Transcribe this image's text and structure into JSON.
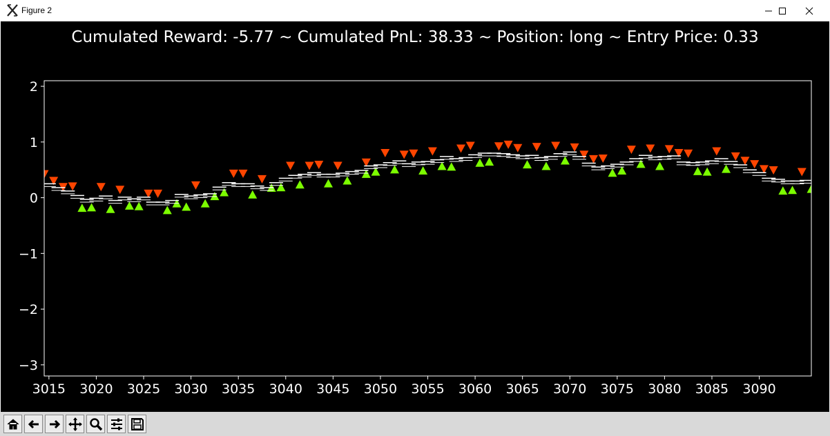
{
  "window": {
    "title": "Figure 2",
    "app_icon": "matplotlib-x-icon",
    "buttons": [
      "minimize-icon",
      "maximize-icon",
      "close-icon"
    ]
  },
  "toolbar": {
    "buttons": [
      "home-icon",
      "back-arrow-icon",
      "forward-arrow-icon",
      "pan-icon",
      "zoom-icon",
      "configure-subplots-icon",
      "save-icon"
    ]
  },
  "chart_data": {
    "type": "scatter",
    "title": "Cumulated Reward: -5.77 ~ Cumulated PnL: 38.33 ~ Position: long ~ Entry Price: 0.33",
    "xlabel": "",
    "ylabel": "",
    "xlim": [
      3014.5,
      3095.5
    ],
    "ylim": [
      -3.2,
      2.1
    ],
    "xticks": [
      3015,
      3020,
      3025,
      3030,
      3035,
      3040,
      3045,
      3050,
      3055,
      3060,
      3065,
      3070,
      3075,
      3080,
      3085,
      3090
    ],
    "yticks": [
      2,
      1,
      0,
      -1,
      -2,
      -3
    ],
    "ytick_labels": [
      "2",
      "1",
      "0",
      "−1",
      "−2",
      "−3"
    ],
    "background": "#000000",
    "axis_color": "#ffffff",
    "grid": false,
    "series": [
      {
        "marker": "triangle-down",
        "color": "#ff4500",
        "points": [
          [
            3014.5,
            0.42
          ],
          [
            3015.5,
            0.3
          ],
          [
            3016.5,
            0.19
          ],
          [
            3017.5,
            0.2
          ],
          [
            3020.5,
            0.19
          ],
          [
            3022.5,
            0.14
          ],
          [
            3025.5,
            0.07
          ],
          [
            3026.5,
            0.07
          ],
          [
            3030.5,
            0.22
          ],
          [
            3034.5,
            0.43
          ],
          [
            3035.5,
            0.43
          ],
          [
            3037.5,
            0.33
          ],
          [
            3040.5,
            0.57
          ],
          [
            3042.5,
            0.57
          ],
          [
            3043.5,
            0.59
          ],
          [
            3045.5,
            0.57
          ],
          [
            3048.5,
            0.63
          ],
          [
            3050.5,
            0.8
          ],
          [
            3052.5,
            0.77
          ],
          [
            3053.5,
            0.79
          ],
          [
            3055.5,
            0.83
          ],
          [
            3058.5,
            0.88
          ],
          [
            3059.5,
            0.93
          ],
          [
            3062.5,
            0.92
          ],
          [
            3063.5,
            0.95
          ],
          [
            3064.5,
            0.89
          ],
          [
            3066.5,
            0.91
          ],
          [
            3068.5,
            0.93
          ],
          [
            3070.5,
            0.9
          ],
          [
            3071.5,
            0.77
          ],
          [
            3072.5,
            0.69
          ],
          [
            3073.5,
            0.7
          ],
          [
            3076.5,
            0.86
          ],
          [
            3078.5,
            0.88
          ],
          [
            3080.5,
            0.87
          ],
          [
            3081.5,
            0.8
          ],
          [
            3082.5,
            0.79
          ],
          [
            3085.5,
            0.83
          ],
          [
            3087.5,
            0.74
          ],
          [
            3088.5,
            0.66
          ],
          [
            3089.5,
            0.6
          ],
          [
            3090.5,
            0.51
          ],
          [
            3091.5,
            0.49
          ],
          [
            3094.5,
            0.46
          ]
        ]
      },
      {
        "marker": "triangle-up",
        "color": "#7cfc00",
        "points": [
          [
            3018.5,
            -0.18
          ],
          [
            3019.5,
            -0.17
          ],
          [
            3021.5,
            -0.2
          ],
          [
            3023.5,
            -0.14
          ],
          [
            3024.5,
            -0.15
          ],
          [
            3027.5,
            -0.22
          ],
          [
            3028.5,
            -0.1
          ],
          [
            3029.5,
            -0.16
          ],
          [
            3031.5,
            -0.1
          ],
          [
            3032.5,
            0.03
          ],
          [
            3033.5,
            0.1
          ],
          [
            3036.5,
            0.06
          ],
          [
            3038.5,
            0.18
          ],
          [
            3039.5,
            0.19
          ],
          [
            3041.5,
            0.24
          ],
          [
            3044.5,
            0.26
          ],
          [
            3046.5,
            0.31
          ],
          [
            3048.5,
            0.43
          ],
          [
            3049.5,
            0.47
          ],
          [
            3051.5,
            0.51
          ],
          [
            3054.5,
            0.49
          ],
          [
            3056.5,
            0.57
          ],
          [
            3057.5,
            0.56
          ],
          [
            3060.5,
            0.63
          ],
          [
            3061.5,
            0.65
          ],
          [
            3065.5,
            0.6
          ],
          [
            3067.5,
            0.57
          ],
          [
            3069.5,
            0.67
          ],
          [
            3074.5,
            0.45
          ],
          [
            3075.5,
            0.49
          ],
          [
            3077.5,
            0.61
          ],
          [
            3079.5,
            0.57
          ],
          [
            3083.5,
            0.48
          ],
          [
            3084.5,
            0.47
          ],
          [
            3086.5,
            0.52
          ],
          [
            3092.5,
            0.13
          ],
          [
            3093.5,
            0.14
          ],
          [
            3095.5,
            0.16
          ]
        ]
      },
      {
        "marker": "hline",
        "color": "#ffffff",
        "note_values": "paired horizontal price marks per step",
        "points": [
          [
            3015,
            0.25
          ],
          [
            3016,
            0.18
          ],
          [
            3017,
            0.12
          ],
          [
            3018,
            0.04
          ],
          [
            3019,
            -0.03
          ],
          [
            3020,
            -0.01
          ],
          [
            3021,
            0.03
          ],
          [
            3022,
            -0.05
          ],
          [
            3023,
            0.01
          ],
          [
            3024,
            -0.02
          ],
          [
            3025,
            0.01
          ],
          [
            3026,
            -0.08
          ],
          [
            3027,
            -0.08
          ],
          [
            3028,
            -0.05
          ],
          [
            3029,
            0.06
          ],
          [
            3030,
            0.03
          ],
          [
            3031,
            0.05
          ],
          [
            3032,
            0.07
          ],
          [
            3033,
            0.19
          ],
          [
            3034,
            0.27
          ],
          [
            3035,
            0.25
          ],
          [
            3036,
            0.25
          ],
          [
            3037,
            0.21
          ],
          [
            3038,
            0.18
          ],
          [
            3039,
            0.27
          ],
          [
            3040,
            0.35
          ],
          [
            3041,
            0.4
          ],
          [
            3042,
            0.42
          ],
          [
            3043,
            0.45
          ],
          [
            3044,
            0.42
          ],
          [
            3045,
            0.42
          ],
          [
            3046,
            0.44
          ],
          [
            3047,
            0.47
          ],
          [
            3048,
            0.49
          ],
          [
            3049,
            0.57
          ],
          [
            3050,
            0.59
          ],
          [
            3051,
            0.63
          ],
          [
            3052,
            0.66
          ],
          [
            3053,
            0.61
          ],
          [
            3054,
            0.64
          ],
          [
            3055,
            0.65
          ],
          [
            3056,
            0.68
          ],
          [
            3057,
            0.74
          ],
          [
            3058,
            0.7
          ],
          [
            3059,
            0.72
          ],
          [
            3060,
            0.77
          ],
          [
            3061,
            0.8
          ],
          [
            3062,
            0.8
          ],
          [
            3063,
            0.79
          ],
          [
            3064,
            0.77
          ],
          [
            3065,
            0.75
          ],
          [
            3066,
            0.76
          ],
          [
            3067,
            0.72
          ],
          [
            3068,
            0.74
          ],
          [
            3069,
            0.79
          ],
          [
            3070,
            0.82
          ],
          [
            3071,
            0.74
          ],
          [
            3072,
            0.62
          ],
          [
            3073,
            0.55
          ],
          [
            3074,
            0.57
          ],
          [
            3075,
            0.6
          ],
          [
            3076,
            0.64
          ],
          [
            3077,
            0.7
          ],
          [
            3078,
            0.76
          ],
          [
            3079,
            0.73
          ],
          [
            3080,
            0.74
          ],
          [
            3081,
            0.75
          ],
          [
            3082,
            0.64
          ],
          [
            3083,
            0.63
          ],
          [
            3084,
            0.64
          ],
          [
            3085,
            0.66
          ],
          [
            3086,
            0.7
          ],
          [
            3087,
            0.65
          ],
          [
            3088,
            0.59
          ],
          [
            3089,
            0.5
          ],
          [
            3090,
            0.45
          ],
          [
            3091,
            0.35
          ],
          [
            3092,
            0.33
          ],
          [
            3093,
            0.3
          ],
          [
            3094,
            0.3
          ],
          [
            3095,
            0.31
          ]
        ]
      }
    ]
  }
}
